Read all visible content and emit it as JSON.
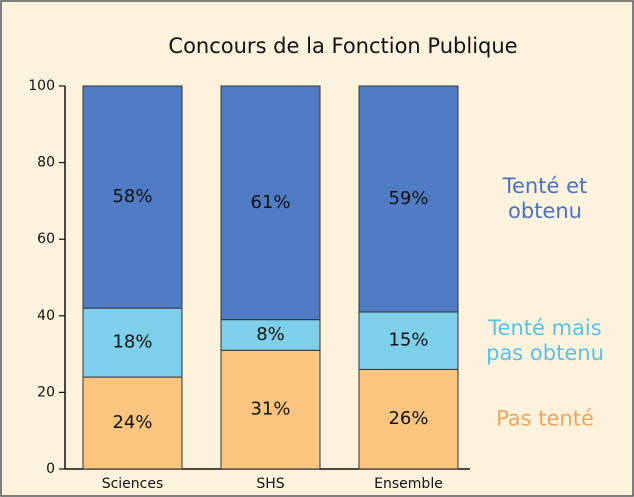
{
  "chart_data": {
    "type": "stacked_bar",
    "title": "Concours de la Fonction Publique",
    "categories": [
      "Sciences",
      "SHS",
      "Ensemble"
    ],
    "series": [
      {
        "name": "Pas tenté",
        "color": "#fbc57f",
        "label_color": "#f2a55a",
        "values": [
          24,
          31,
          26
        ],
        "value_labels": [
          "24%",
          "31%",
          "26%"
        ]
      },
      {
        "name": "Tenté mais pas obtenu",
        "color": "#7ecfea",
        "label_color": "#5bbfe6",
        "values": [
          18,
          8,
          15
        ],
        "value_labels": [
          "18%",
          "8%",
          "15%"
        ]
      },
      {
        "name": "Tenté et obtenu",
        "color": "#4f7cc4",
        "label_color": "#4a72c0",
        "values": [
          58,
          61,
          59
        ],
        "value_labels": [
          "58%",
          "61%",
          "59%"
        ]
      }
    ],
    "ylim": [
      0,
      100
    ],
    "yticks": [
      0,
      20,
      40,
      60,
      80,
      100
    ]
  }
}
